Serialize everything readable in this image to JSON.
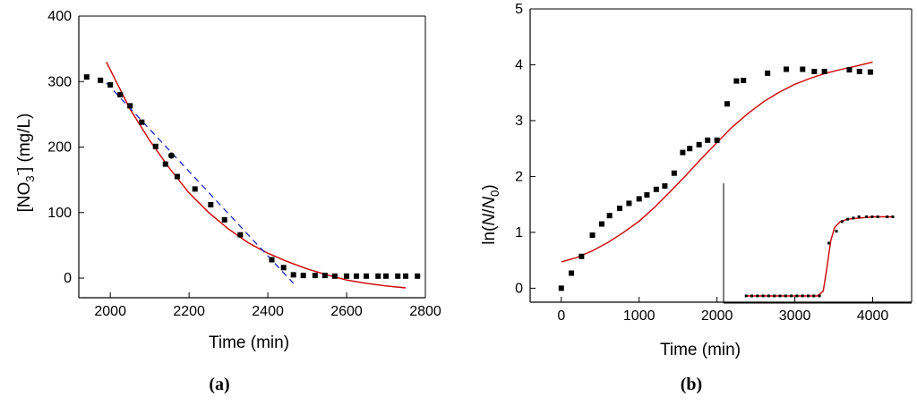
{
  "chart_data": [
    {
      "id": "a",
      "type": "scatter",
      "panel_label": "(a)",
      "xlabel": "Time (min)",
      "ylabel": {
        "main": "[NO",
        "sub": "3",
        "sup": "-",
        "rest": "] (mg/L)"
      },
      "xlim": [
        1920,
        2800
      ],
      "ylim": [
        -30,
        400
      ],
      "xticks": [
        2000,
        2200,
        2400,
        2600,
        2800
      ],
      "yticks": [
        0,
        100,
        200,
        300,
        400
      ],
      "series": [
        {
          "name": "data",
          "kind": "square",
          "x": [
            1940,
            1975,
            2000,
            2025,
            2050,
            2080,
            2115,
            2140,
            2170,
            2215,
            2255,
            2290,
            2330,
            2410,
            2440,
            2465,
            2490,
            2520,
            2545,
            2570,
            2600,
            2625,
            2650,
            2680,
            2700,
            2730,
            2750,
            2780
          ],
          "y": [
            307,
            302,
            295,
            280,
            263,
            238,
            201,
            174,
            155,
            136,
            112,
            89,
            66,
            28,
            16,
            5,
            4,
            4,
            4,
            3,
            3,
            3,
            3,
            3,
            3,
            3,
            3,
            3
          ]
        },
        {
          "name": "data-circle",
          "kind": "circle",
          "x": [
            2155
          ],
          "y": [
            187
          ]
        },
        {
          "name": "fit",
          "kind": "line",
          "color": "#cc0000",
          "x": [
            1990,
            2050,
            2100,
            2150,
            2200,
            2250,
            2300,
            2350,
            2400,
            2450,
            2500,
            2550,
            2600,
            2650,
            2700,
            2750
          ],
          "y": [
            330,
            258,
            210,
            168,
            130,
            100,
            75,
            54,
            38,
            25,
            14,
            5,
            -3,
            -8,
            -12,
            -15
          ]
        },
        {
          "name": "linear fit",
          "kind": "dashed",
          "color": "#1a2bbf",
          "x": [
            1990,
            2465
          ],
          "y": [
            298,
            -8
          ]
        }
      ]
    },
    {
      "id": "b",
      "type": "scatter",
      "panel_label": "(b)",
      "xlabel": "Time (min)",
      "ylabel": {
        "main": "ln(",
        "italic1": "N",
        "mid": "/",
        "italic2": "N",
        "sub": "0",
        "rest": ")"
      },
      "xlim": [
        -400,
        4500
      ],
      "ylim": [
        -0.25,
        5
      ],
      "xticks": [
        0,
        1000,
        2000,
        3000,
        4000
      ],
      "yticks": [
        0,
        1,
        2,
        3,
        4,
        5
      ],
      "series": [
        {
          "name": "data",
          "kind": "square",
          "x": [
            0,
            130,
            260,
            400,
            520,
            620,
            750,
            870,
            1000,
            1100,
            1220,
            1330,
            1450,
            1560,
            1650,
            1770,
            1880,
            2000,
            2130,
            2250,
            2340,
            2650,
            2890,
            3100,
            3250,
            3380,
            3700,
            3830,
            3970
          ],
          "y": [
            0,
            0.27,
            0.57,
            0.95,
            1.15,
            1.3,
            1.43,
            1.52,
            1.6,
            1.67,
            1.77,
            1.83,
            2.06,
            2.43,
            2.5,
            2.57,
            2.65,
            2.65,
            3.3,
            3.71,
            3.72,
            3.85,
            3.92,
            3.92,
            3.88,
            3.88,
            3.91,
            3.88,
            3.87
          ]
        },
        {
          "name": "fit",
          "kind": "line",
          "color": "#cc0000",
          "x": [
            0,
            200,
            400,
            600,
            800,
            1000,
            1200,
            1400,
            1600,
            1800,
            2000,
            2200,
            2400,
            2600,
            2800,
            3000,
            3200,
            3400,
            3600,
            3800,
            4000
          ],
          "y": [
            0.47,
            0.55,
            0.67,
            0.82,
            1.0,
            1.2,
            1.45,
            1.73,
            2.02,
            2.32,
            2.61,
            2.89,
            3.13,
            3.34,
            3.51,
            3.65,
            3.76,
            3.85,
            3.92,
            3.98,
            4.05
          ]
        }
      ],
      "inset": {
        "xlim": [
          0,
          1
        ],
        "ylim": [
          0,
          1
        ],
        "series": [
          {
            "name": "inset-data",
            "kind": "square",
            "x": [
              0.12,
              0.15,
              0.18,
              0.21,
              0.24,
              0.27,
              0.3,
              0.33,
              0.36,
              0.39,
              0.42,
              0.45,
              0.48,
              0.51,
              0.56,
              0.6,
              0.63,
              0.66,
              0.69,
              0.72,
              0.76,
              0.79,
              0.82,
              0.87,
              0.9
            ],
            "y": [
              0.06,
              0.06,
              0.06,
              0.06,
              0.06,
              0.06,
              0.06,
              0.06,
              0.06,
              0.06,
              0.06,
              0.06,
              0.06,
              0.06,
              0.5,
              0.6,
              0.68,
              0.7,
              0.71,
              0.72,
              0.72,
              0.72,
              0.72,
              0.72,
              0.72
            ]
          },
          {
            "name": "inset-fit",
            "kind": "line",
            "color": "#cc0000",
            "x": [
              0.12,
              0.5,
              0.53,
              0.55,
              0.57,
              0.59,
              0.62,
              0.66,
              0.72,
              0.8,
              0.9
            ],
            "y": [
              0.06,
              0.06,
              0.1,
              0.3,
              0.52,
              0.63,
              0.68,
              0.7,
              0.71,
              0.72,
              0.72
            ]
          }
        ]
      }
    }
  ]
}
